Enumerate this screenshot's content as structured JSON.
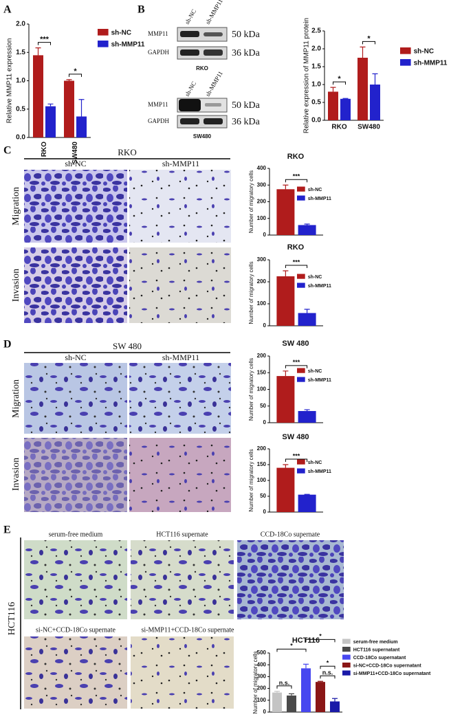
{
  "figure": {
    "panel_labels": [
      "A",
      "B",
      "C",
      "D",
      "E"
    ],
    "blots": {
      "lanes": [
        "sh-NC",
        "sh-MMP11"
      ],
      "proteins": [
        "MMP11",
        "GAPDH"
      ],
      "sizes": [
        "50 kDa",
        "36 kDa"
      ],
      "cells": [
        "RKO",
        "SW480"
      ]
    },
    "C": {
      "heading": "RKO",
      "columns": [
        "sh-NC",
        "sh-MMP11"
      ],
      "rows": [
        "Migration",
        "Invasion"
      ]
    },
    "D": {
      "heading": "SW 480",
      "columns": [
        "sh-NC",
        "sh-MMP11"
      ],
      "rows": [
        "Migration",
        "Invasion"
      ]
    },
    "E": {
      "side": "HCT116",
      "images": [
        "serum-free medium",
        "HCT116 supernate",
        "CCD-18Co supernate",
        "si-NC+CCD-18Co supernate",
        "si-MMP11+CCD-18Co supernate"
      ]
    }
  },
  "chart_data": [
    {
      "type": "bar",
      "ylabel": "Relative MMP11 expression",
      "categories": [
        "RKO",
        "SW480"
      ],
      "series": [
        {
          "name": "sh-NC",
          "color": "#b01c1c",
          "values": [
            1.45,
            1.0
          ],
          "errors": [
            0.13,
            0.02
          ]
        },
        {
          "name": "sh-MMP11",
          "color": "#2222cc",
          "values": [
            0.55,
            0.37
          ],
          "errors": [
            0.04,
            0.3
          ]
        }
      ],
      "ylim": [
        0,
        2
      ],
      "yticks": [
        {
          "value": 0,
          "label": "0.0"
        },
        {
          "value": 0.5,
          "label": "0.5"
        },
        {
          "value": 1,
          "label": "1.0"
        },
        {
          "value": 1.5,
          "label": "1.5"
        },
        {
          "value": 2,
          "label": "2.0"
        }
      ],
      "annotations": [
        "***",
        "*"
      ]
    },
    {
      "type": "bar",
      "ylabel": "Relative expression of MMP11 protein",
      "categories": [
        "RKO",
        "SW480"
      ],
      "series": [
        {
          "name": "sh-NC",
          "color": "#b01c1c",
          "values": [
            0.8,
            1.75
          ],
          "errors": [
            0.12,
            0.3
          ]
        },
        {
          "name": "sh-MMP11",
          "color": "#2222cc",
          "values": [
            0.6,
            1.0
          ],
          "errors": [
            0.01,
            0.3
          ]
        }
      ],
      "ylim": [
        0,
        2.5
      ],
      "yticks": [
        {
          "value": 0,
          "label": "0.0"
        },
        {
          "value": 0.5,
          "label": "0.5"
        },
        {
          "value": 1,
          "label": "1.0"
        },
        {
          "value": 1.5,
          "label": "1.5"
        },
        {
          "value": 2,
          "label": "2.0"
        },
        {
          "value": 2.5,
          "label": "2.5"
        }
      ],
      "annotations": [
        "*",
        "*"
      ]
    },
    {
      "type": "bar",
      "title": "RKO",
      "ylabel": "Number of migratory cells",
      "series": [
        {
          "name": "sh-NC",
          "color": "#b01c1c",
          "values": [
            275
          ],
          "errors": [
            25
          ]
        },
        {
          "name": "sh-MMP11",
          "color": "#2222cc",
          "values": [
            60
          ],
          "errors": [
            6
          ]
        }
      ],
      "ylim": [
        0,
        400
      ],
      "yticks": [
        0,
        100,
        200,
        300,
        400
      ],
      "annotations": [
        "***"
      ]
    },
    {
      "type": "bar",
      "title": "RKO",
      "ylabel": "Number of migratory cells",
      "series": [
        {
          "name": "sh-NC",
          "color": "#b01c1c",
          "values": [
            225
          ],
          "errors": [
            25
          ]
        },
        {
          "name": "sh-MMP11",
          "color": "#2222cc",
          "values": [
            58
          ],
          "errors": [
            17
          ]
        }
      ],
      "ylim": [
        0,
        300
      ],
      "yticks": [
        0,
        100,
        200,
        300
      ],
      "annotations": [
        "***"
      ]
    },
    {
      "type": "bar",
      "title": "SW 480",
      "ylabel": "Number of migratory cells",
      "series": [
        {
          "name": "sh-NC",
          "color": "#b01c1c",
          "values": [
            140
          ],
          "errors": [
            15
          ]
        },
        {
          "name": "sh-MMP11",
          "color": "#2222cc",
          "values": [
            35
          ],
          "errors": [
            4
          ]
        }
      ],
      "ylim": [
        0,
        200
      ],
      "yticks": [
        0,
        50,
        100,
        150,
        200
      ],
      "annotations": [
        "***"
      ]
    },
    {
      "type": "bar",
      "title": "SW 480",
      "ylabel": "Number of migratory cells",
      "series": [
        {
          "name": "sh-NC",
          "color": "#b01c1c",
          "values": [
            140
          ],
          "errors": [
            10
          ]
        },
        {
          "name": "sh-MMP11",
          "color": "#2222cc",
          "values": [
            55
          ],
          "errors": [
            1
          ]
        }
      ],
      "ylim": [
        0,
        200
      ],
      "yticks": [
        0,
        50,
        100,
        150,
        200
      ],
      "annotations": [
        "***"
      ]
    },
    {
      "type": "bar",
      "title": "HCT116",
      "ylabel": "Number of migratory cells",
      "series": [
        {
          "name": "serum-free medium",
          "color": "#c4c4c4",
          "values": [
            165
          ],
          "errors": [
            10
          ]
        },
        {
          "name": "HCT116 supernatant",
          "color": "#4a4a4a",
          "values": [
            140
          ],
          "errors": [
            15
          ]
        },
        {
          "name": "CCD-18Co supernatant",
          "color": "#4848f0",
          "values": [
            370
          ],
          "errors": [
            35
          ]
        },
        {
          "name": "si-NC+CCD-18Co supernatant",
          "color": "#8a1616",
          "values": [
            255
          ],
          "errors": [
            5
          ]
        },
        {
          "name": "si-MMP11+CCD-18Co supernatant",
          "color": "#1a1aa8",
          "values": [
            90
          ],
          "errors": [
            25
          ]
        }
      ],
      "ylim": [
        0,
        500
      ],
      "yticks": [
        0,
        100,
        200,
        300,
        400,
        500
      ],
      "annotations": [
        "*",
        "*",
        "n.s.",
        "n.s.",
        "*"
      ]
    }
  ]
}
